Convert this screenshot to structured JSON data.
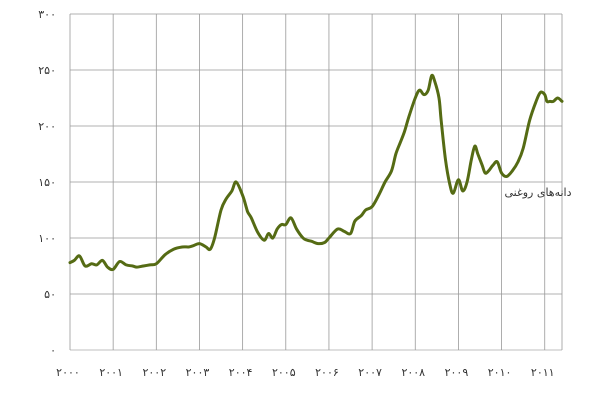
{
  "chart_data": {
    "type": "line",
    "title": "",
    "xlabel": "",
    "ylabel": "",
    "grid": true,
    "xlim": [
      2000,
      2011.4
    ],
    "ylim": [
      0,
      300
    ],
    "x_ticks": [
      {
        "value": 2000,
        "label": "۲۰۰۰"
      },
      {
        "value": 2001,
        "label": "۲۰۰۱"
      },
      {
        "value": 2002,
        "label": "۲۰۰۲"
      },
      {
        "value": 2003,
        "label": "۲۰۰۳"
      },
      {
        "value": 2004,
        "label": "۲۰۰۴"
      },
      {
        "value": 2005,
        "label": "۲۰۰۵"
      },
      {
        "value": 2006,
        "label": "۲۰۰۶"
      },
      {
        "value": 2007,
        "label": "۲۰۰۷"
      },
      {
        "value": 2008,
        "label": "۲۰۰۸"
      },
      {
        "value": 2009,
        "label": "۲۰۰۹"
      },
      {
        "value": 2010,
        "label": "۲۰۱۰"
      },
      {
        "value": 2011,
        "label": "۲۰۱۱"
      }
    ],
    "y_ticks": [
      {
        "value": 0,
        "label": "۰"
      },
      {
        "value": 50,
        "label": "۵۰"
      },
      {
        "value": 100,
        "label": "۱۰۰"
      },
      {
        "value": 150,
        "label": "۱۵۰"
      },
      {
        "value": 200,
        "label": "۲۰۰"
      },
      {
        "value": 250,
        "label": "۲۵۰"
      },
      {
        "value": 300,
        "label": "۳۰۰"
      }
    ],
    "series": [
      {
        "name": "دانه‌های روغنی",
        "color": "#556b14",
        "x": [
          2000.0,
          2000.1,
          2000.22,
          2000.35,
          2000.5,
          2000.62,
          2000.75,
          2000.87,
          2001.0,
          2001.15,
          2001.3,
          2001.45,
          2001.55,
          2001.7,
          2001.85,
          2002.0,
          2002.2,
          2002.4,
          2002.6,
          2002.75,
          2002.85,
          2003.0,
          2003.15,
          2003.25,
          2003.35,
          2003.5,
          2003.62,
          2003.75,
          2003.85,
          2004.0,
          2004.08,
          2004.12,
          2004.2,
          2004.35,
          2004.5,
          2004.6,
          2004.7,
          2004.8,
          2004.9,
          2005.0,
          2005.12,
          2005.25,
          2005.4,
          2005.5,
          2005.6,
          2005.75,
          2005.9,
          2006.0,
          2006.2,
          2006.35,
          2006.5,
          2006.6,
          2006.75,
          2006.85,
          2007.0,
          2007.15,
          2007.3,
          2007.45,
          2007.55,
          2007.65,
          2007.75,
          2007.85,
          2008.0,
          2008.1,
          2008.2,
          2008.3,
          2008.38,
          2008.45,
          2008.55,
          2008.6,
          2008.7,
          2008.8,
          2008.88,
          2009.0,
          2009.1,
          2009.2,
          2009.3,
          2009.38,
          2009.45,
          2009.55,
          2009.62,
          2009.7,
          2009.8,
          2009.9,
          2010.0,
          2010.12,
          2010.25,
          2010.38,
          2010.5,
          2010.65,
          2010.8,
          2010.9,
          2011.0,
          2011.05,
          2011.12,
          2011.2,
          2011.3,
          2011.4
        ],
        "values": [
          78,
          80,
          84,
          75,
          77,
          76,
          80,
          74,
          72,
          79,
          76,
          75,
          74,
          75,
          76,
          77,
          85,
          90,
          92,
          92,
          93,
          95,
          92,
          90,
          100,
          125,
          135,
          142,
          150,
          138,
          128,
          123,
          118,
          105,
          98,
          104,
          100,
          108,
          112,
          112,
          118,
          108,
          100,
          98,
          97,
          95,
          96,
          100,
          108,
          106,
          104,
          115,
          120,
          125,
          128,
          138,
          150,
          160,
          175,
          185,
          195,
          208,
          225,
          232,
          228,
          232,
          245,
          240,
          225,
          205,
          170,
          148,
          140,
          152,
          142,
          150,
          170,
          182,
          175,
          165,
          158,
          160,
          165,
          168,
          158,
          155,
          160,
          168,
          180,
          205,
          222,
          230,
          228,
          222,
          222,
          222,
          225,
          222
        ]
      }
    ]
  }
}
